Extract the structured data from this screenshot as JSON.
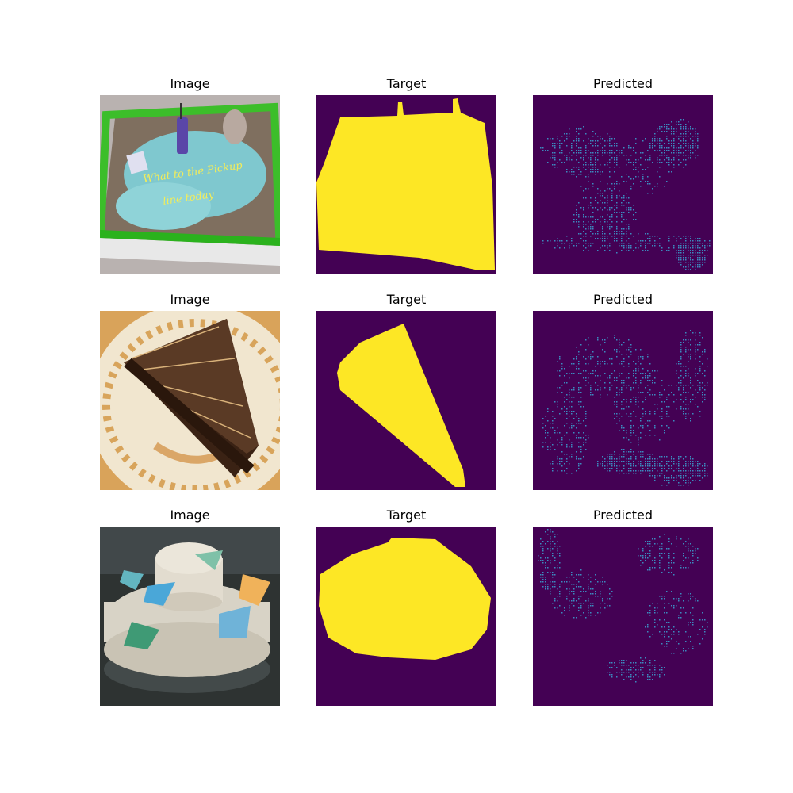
{
  "grid": {
    "rows": [
      {
        "image_title": "Image",
        "target_title": "Target",
        "predicted_title": "Predicted"
      },
      {
        "image_title": "Image",
        "target_title": "Target",
        "predicted_title": "Predicted"
      },
      {
        "image_title": "Image",
        "target_title": "Target",
        "predicted_title": "Predicted"
      }
    ]
  },
  "photo_text": {
    "cake1_line1": "What to the Pickup",
    "cake1_line2": "line today"
  },
  "colors": {
    "mask_background": "#440154",
    "mask_foreground": "#fde725",
    "prediction_dots": "#3b8bbf"
  }
}
